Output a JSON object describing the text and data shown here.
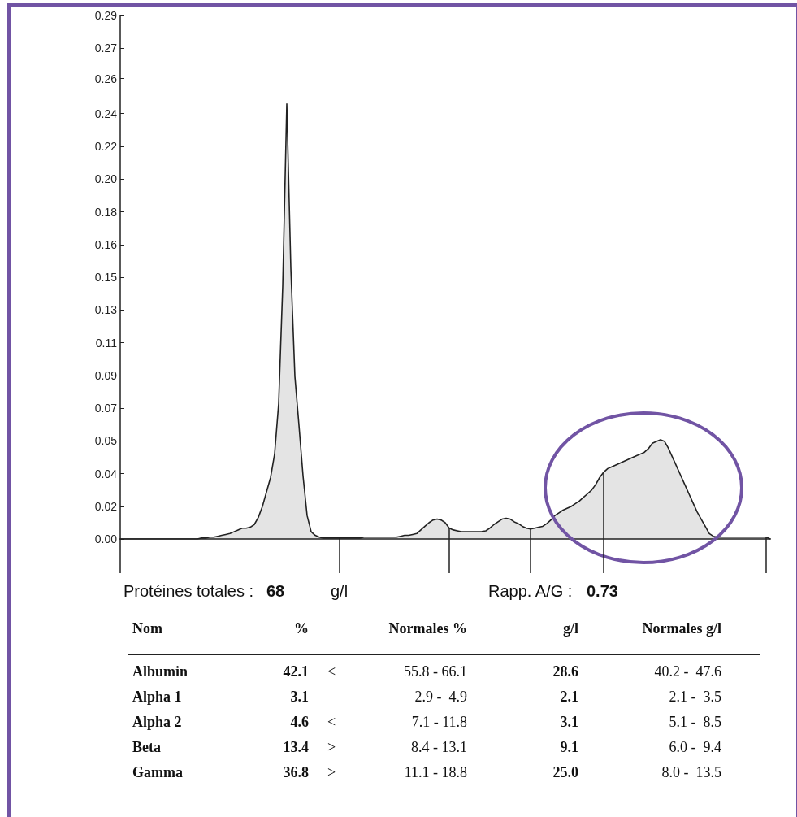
{
  "chart_data": [
    {
      "type": "area",
      "tick_labels": "y",
      "grid": false,
      "line_style": "solid",
      "categories": [
        null,
        null,
        null,
        null,
        null,
        null,
        null,
        null,
        null,
        null,
        null,
        null,
        null,
        null,
        null,
        null,
        null,
        null,
        null,
        null,
        null,
        null,
        null,
        null,
        null,
        null,
        null,
        null,
        null,
        null,
        null,
        null,
        null,
        null,
        null,
        null,
        null,
        null,
        null,
        null,
        null,
        null,
        null,
        null,
        null,
        null,
        null,
        null,
        null,
        null,
        null,
        null,
        null,
        null,
        null,
        null,
        null,
        null,
        null,
        null,
        null,
        null,
        null,
        null,
        null,
        null,
        null,
        null,
        null,
        null,
        null,
        null,
        null,
        null,
        null,
        null,
        null,
        null,
        null,
        null,
        null,
        null,
        null,
        null,
        null,
        null,
        null,
        null,
        null,
        null,
        null,
        null,
        null,
        null,
        null,
        null,
        null,
        null,
        null,
        null,
        null,
        null,
        null,
        null,
        null,
        null,
        null,
        null,
        null,
        null,
        null,
        null,
        null,
        null,
        null,
        null,
        null,
        null,
        null,
        null,
        null,
        null,
        null,
        null,
        null,
        null,
        null,
        null,
        null,
        null,
        null,
        null,
        null,
        null,
        null,
        null,
        null,
        null,
        null,
        null,
        null,
        null,
        null,
        null,
        null,
        null,
        null,
        null,
        null,
        null,
        null,
        null,
        null,
        null,
        null,
        null,
        null,
        null,
        null,
        null,
        null
      ],
      "series": [
        {
          "color": "#222222",
          "values": [
            0,
            0,
            0,
            0,
            0,
            0,
            0,
            0,
            0,
            0,
            0,
            0,
            0,
            0,
            0,
            0,
            0,
            0,
            0,
            0,
            0.0005,
            0.0005,
            0.001,
            0.001,
            0.0015,
            0.002,
            0.0025,
            0.003,
            0.004,
            0.005,
            0.006,
            0.006,
            0.0065,
            0.008,
            0.012,
            0.018,
            0.026,
            0.034,
            0.047,
            0.075,
            0.14,
            0.241,
            0.15,
            0.09,
            0.063,
            0.035,
            0.013,
            0.004,
            0.002,
            0.001,
            0.0005,
            0.0005,
            0.0005,
            0.0005,
            0.0005,
            0.0005,
            0.0005,
            0.0005,
            0.0005,
            0.0005,
            0.001,
            0.001,
            0.001,
            0.001,
            0.001,
            0.001,
            0.001,
            0.001,
            0.001,
            0.0015,
            0.002,
            0.002,
            0.0025,
            0.003,
            0.005,
            0.007,
            0.009,
            0.0105,
            0.011,
            0.0105,
            0.009,
            0.006,
            0.005,
            0.0045,
            0.004,
            0.004,
            0.004,
            0.004,
            0.004,
            0.0042,
            0.0045,
            0.006,
            0.008,
            0.0095,
            0.011,
            0.0115,
            0.011,
            0.0095,
            0.0085,
            0.007,
            0.006,
            0.0055,
            0.006,
            0.0065,
            0.007,
            0.0085,
            0.0105,
            0.013,
            0.0145,
            0.016,
            0.017,
            0.018,
            0.0195,
            0.021,
            0.023,
            0.025,
            0.027,
            0.03,
            0.034,
            0.037,
            0.039,
            0.04,
            0.041,
            0.042,
            0.043,
            0.044,
            0.045,
            0.046,
            0.047,
            0.048,
            0.05,
            0.053,
            0.054,
            0.055,
            0.054,
            0.05,
            0.045,
            0.04,
            0.035,
            0.03,
            0.025,
            0.02,
            0.015,
            0.011,
            0.007,
            0.003,
            0.0015,
            0.001,
            0.001,
            0.001,
            0.001,
            0.001,
            0.001,
            0.001,
            0.001,
            0.001,
            0.001,
            0.001,
            0.001,
            0.001,
            0
          ]
        }
      ],
      "ylim": [
        0,
        0.29
      ],
      "yticks": [
        {
          "value": 0,
          "label": "0.00"
        },
        {
          "value": 0.018125,
          "label": "0.02"
        },
        {
          "value": 0.03625,
          "label": "0.04"
        },
        {
          "value": 0.054375,
          "label": "0.05"
        },
        {
          "value": 0.0724,
          "label": "0.07"
        },
        {
          "value": 0.090625,
          "label": "0.09"
        },
        {
          "value": 0.10875,
          "label": "0.11"
        },
        {
          "value": 0.126875,
          "label": "0.13"
        },
        {
          "value": 0.1451,
          "label": "0.15"
        },
        {
          "value": 0.163125,
          "label": "0.16"
        },
        {
          "value": 0.18125,
          "label": "0.18"
        },
        {
          "value": 0.199375,
          "label": "0.20"
        },
        {
          "value": 0.2176,
          "label": "0.22"
        },
        {
          "value": 0.235625,
          "label": "0.24"
        },
        {
          "value": 0.255,
          "label": "0.26"
        },
        {
          "value": 0.271875,
          "label": "0.27"
        },
        {
          "value": 0.29,
          "label": "0.29"
        }
      ]
    },
    {
      "type": "other",
      "annotations": [
        "Protéines totales :",
        "68",
        "g/l",
        "Rapp. A/G :",
        "0.73",
        "Nom",
        "Normales %",
        "Normales g/l",
        "<",
        "<",
        ">",
        ">",
        "55.8 - 66.1",
        "2.9 -  4.9",
        "7.1 - 11.8",
        "8.4 - 13.1",
        "11.1 - 18.8",
        "40.2 -  47.6",
        "2.1 -  3.5",
        "5.1 -  8.5",
        "6.0 -  9.4",
        "8.0 -  13.5"
      ],
      "categories": [
        "Albumin",
        "Alpha 1",
        "Alpha 2",
        "Beta",
        "Gamma"
      ],
      "series": [
        {
          "name": "%",
          "values": [
            42.1,
            3.1,
            4.6,
            13.4,
            36.8
          ],
          "value_labels": [
            "42.1",
            "3.1",
            "4.6",
            "13.4",
            "36.8"
          ]
        },
        {
          "name": "g/l",
          "values": [
            28.6,
            2.1,
            3.1,
            9.1,
            25.0
          ],
          "value_labels": [
            "28.6",
            "2.1",
            "3.1",
            "9.1",
            "25.0"
          ]
        }
      ]
    }
  ]
}
